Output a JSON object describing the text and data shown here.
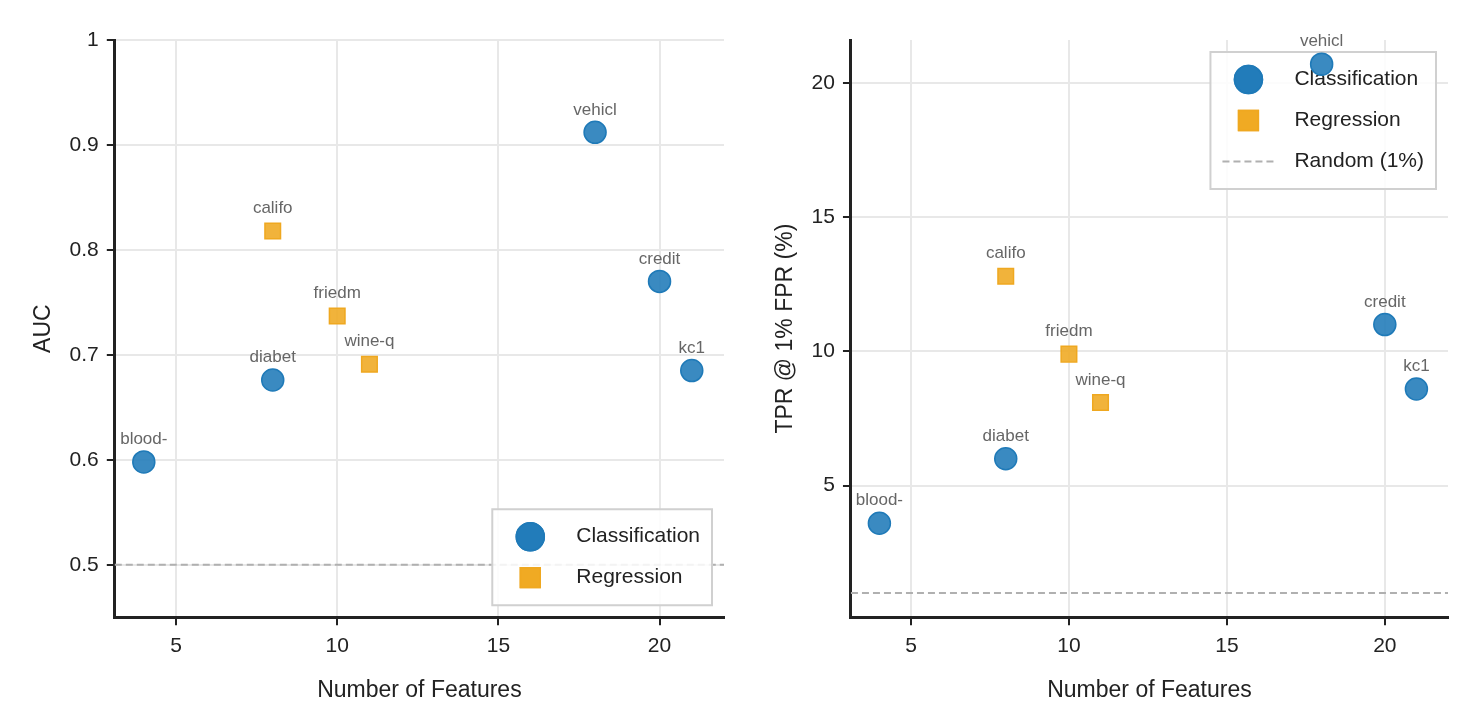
{
  "chart_data": [
    {
      "type": "scatter",
      "xlabel": "Number of Features",
      "ylabel": "AUC",
      "xlim": [
        3.1,
        22
      ],
      "xticks": [
        5,
        10,
        15,
        20
      ],
      "ylim": [
        0.45,
        1.0
      ],
      "yticks": [
        0.5,
        0.6,
        0.7,
        0.8,
        0.9,
        1.0
      ],
      "grid": true,
      "legend": "bottom right",
      "series": [
        {
          "name": "Classification",
          "color": "#1f7ab8",
          "marker": "circle",
          "x": [
            4,
            8,
            18,
            20,
            21
          ],
          "values": [
            0.598,
            0.676,
            0.912,
            0.77,
            0.685
          ]
        },
        {
          "name": "Regression",
          "color": "#efa820",
          "marker": "square",
          "x": [
            8,
            10,
            11
          ],
          "values": [
            0.818,
            0.737,
            0.691
          ]
        }
      ],
      "ref_lines": [
        {
          "axis": "y",
          "value": 0.5,
          "color": "#b0b0b0",
          "line_style": "dashed"
        }
      ],
      "annotations": [
        {
          "text": "blood-",
          "x": 4,
          "y": 0.598
        },
        {
          "text": "diabet",
          "x": 8,
          "y": 0.676
        },
        {
          "text": "califo",
          "x": 8,
          "y": 0.818
        },
        {
          "text": "friedm",
          "x": 10,
          "y": 0.737
        },
        {
          "text": "wine-q",
          "x": 11,
          "y": 0.691
        },
        {
          "text": "vehicl",
          "x": 18,
          "y": 0.912
        },
        {
          "text": "credit",
          "x": 20,
          "y": 0.77
        },
        {
          "text": "kc1",
          "x": 21,
          "y": 0.685
        }
      ]
    },
    {
      "type": "scatter",
      "xlabel": "Number of Features",
      "ylabel": "TPR @ 1% FPR (%)",
      "xlim": [
        3.1,
        22
      ],
      "xticks": [
        5,
        10,
        15,
        20
      ],
      "ylim": [
        0.1,
        21.6
      ],
      "yticks": [
        5,
        10,
        15,
        20
      ],
      "grid": true,
      "legend": "top right",
      "series": [
        {
          "name": "Classification",
          "color": "#1f7ab8",
          "marker": "circle",
          "x": [
            4,
            8,
            18,
            20,
            21
          ],
          "values": [
            3.6,
            6.0,
            20.7,
            11.0,
            8.6
          ]
        },
        {
          "name": "Regression",
          "color": "#efa820",
          "marker": "square",
          "x": [
            8,
            10,
            11
          ],
          "values": [
            12.8,
            9.9,
            8.1
          ]
        }
      ],
      "ref_lines": [
        {
          "axis": "y",
          "value": 1,
          "label": "Random (1%)",
          "color": "#b0b0b0",
          "line_style": "dashed"
        }
      ],
      "annotations": [
        {
          "text": "blood-",
          "x": 4,
          "y": 3.6
        },
        {
          "text": "diabet",
          "x": 8,
          "y": 6.0
        },
        {
          "text": "califo",
          "x": 8,
          "y": 12.8
        },
        {
          "text": "friedm",
          "x": 10,
          "y": 9.9
        },
        {
          "text": "wine-q",
          "x": 11,
          "y": 8.1
        },
        {
          "text": "vehicl",
          "x": 18,
          "y": 20.7
        },
        {
          "text": "credit",
          "x": 20,
          "y": 11.0
        },
        {
          "text": "kc1",
          "x": 21,
          "y": 8.6
        }
      ]
    }
  ]
}
